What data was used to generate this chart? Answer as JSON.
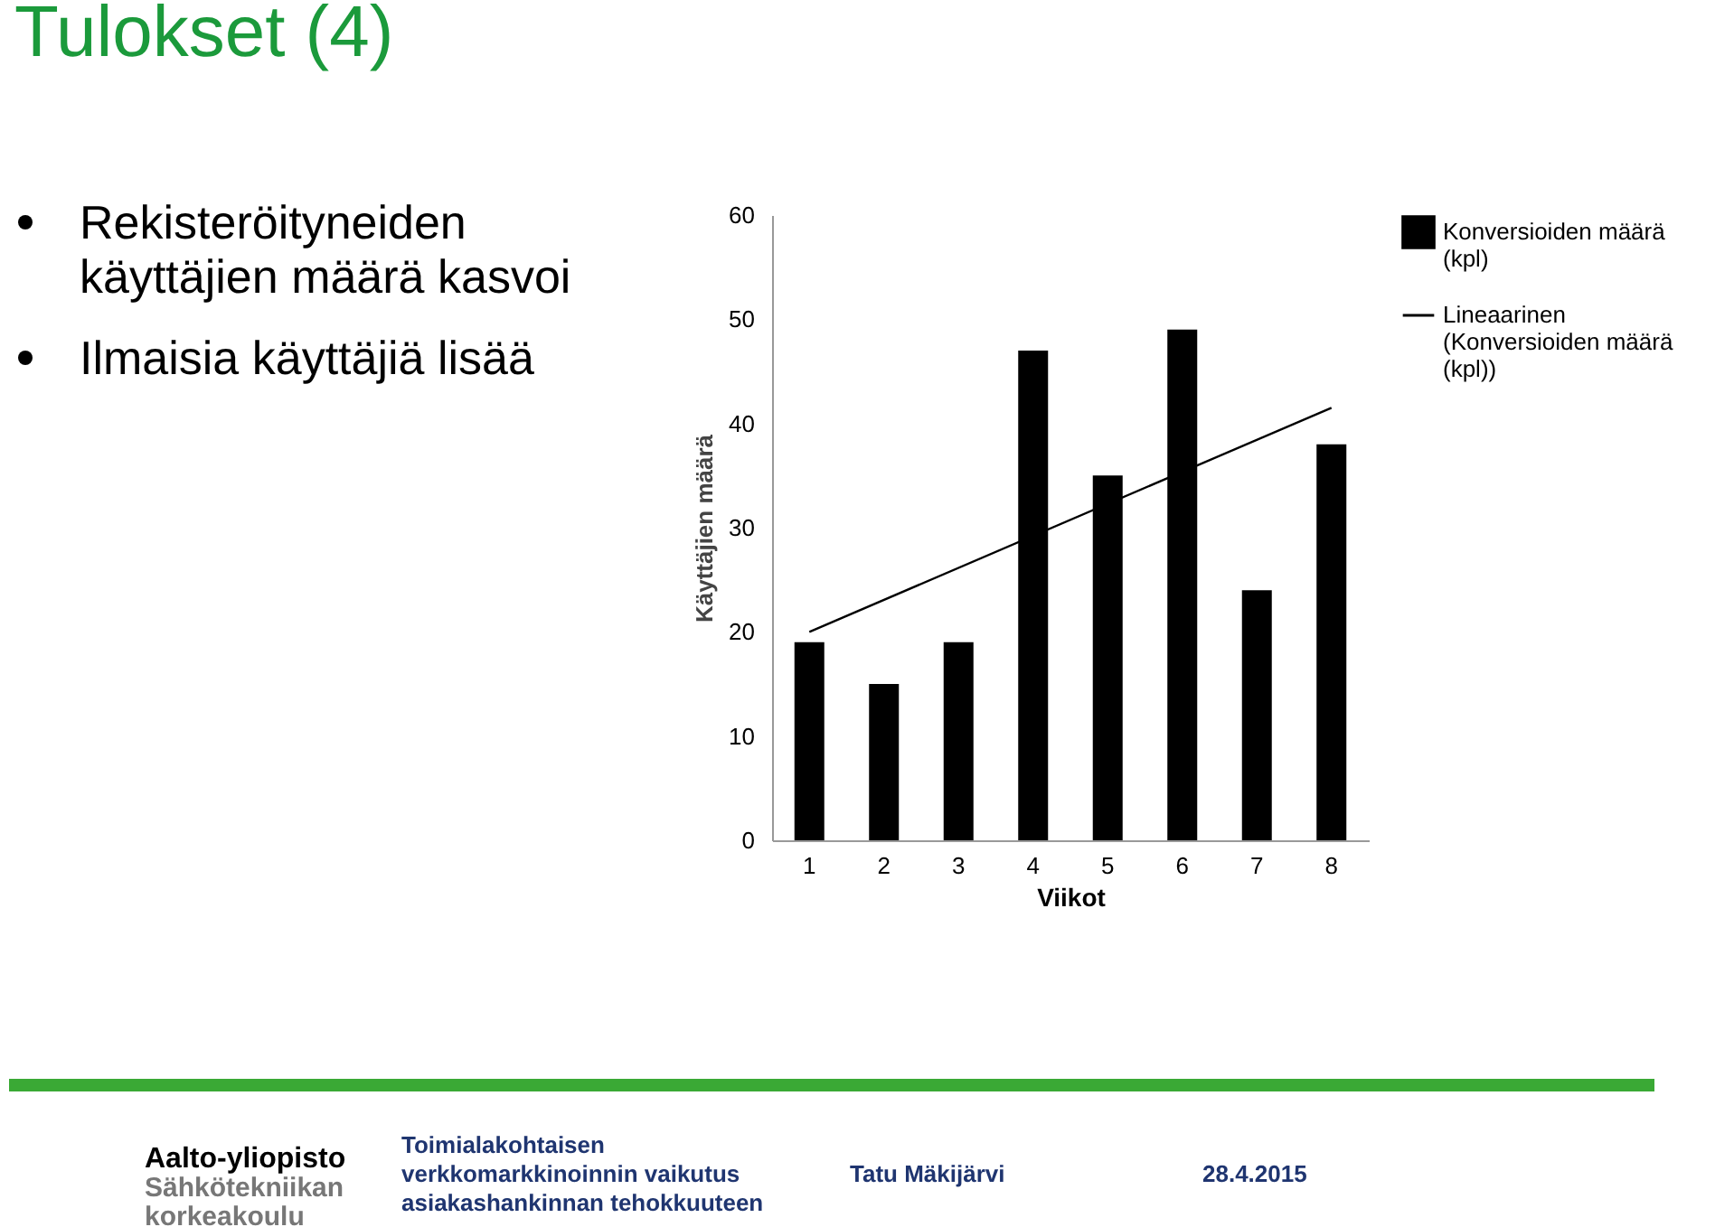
{
  "chart_data": {
    "type": "bar",
    "title": "Tulokset (4)",
    "categories": [
      "1",
      "2",
      "3",
      "4",
      "5",
      "6",
      "7",
      "8"
    ],
    "series": [
      {
        "name": "Konversioiden määrä (kpl)",
        "color": "#000000",
        "values": [
          19,
          15,
          19,
          47,
          35,
          49,
          24,
          38
        ]
      },
      {
        "name": "Lineaarinen (Konversioiden määrä (kpl))",
        "type": "line",
        "color": "#000000",
        "x": [
          "1",
          "8"
        ],
        "values": [
          20.0,
          41.5
        ]
      }
    ],
    "xlabel": "Viikot",
    "ylabel": "Käyttäjien määrä",
    "ylim": [
      0,
      60
    ],
    "yticks": [
      0,
      10,
      20,
      30,
      40,
      50,
      60
    ],
    "grid": false,
    "legend": "right",
    "annotations": [
      "Rekisteröityneiden käyttäjien määrä kasvoi",
      "Ilmaisia käyttäjiä lisää",
      "Aalto-yliopisto",
      "Sähkötekniikan korkeakoulu",
      "Toimialakohtaisen verkkomarkkinoinnin vaikutus asiakashankinnan tehokkuuteen",
      "Tatu Mäkijärvi",
      "28.4.2015"
    ]
  }
}
